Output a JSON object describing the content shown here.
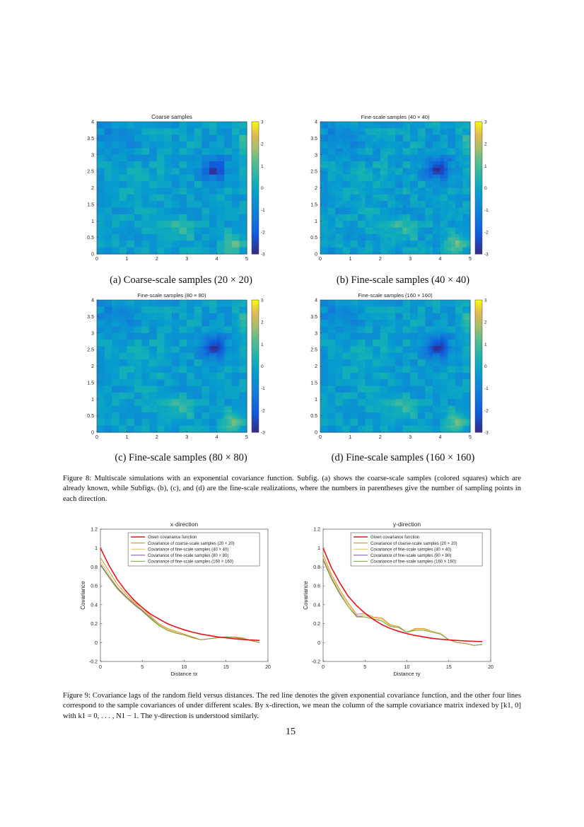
{
  "colors": {
    "red": "#e8141b",
    "orange": "#d9881c",
    "yellow": "#e8c241",
    "purple": "#7e4fa6",
    "green": "#77ac30"
  },
  "colorbar_ticks": [
    "3",
    "2",
    "1",
    "0",
    "-1",
    "-2",
    "-3"
  ],
  "heatmap_xticks": [
    "0",
    "1",
    "2",
    "3",
    "4",
    "5"
  ],
  "heatmap_yticks": [
    "4",
    "3.5",
    "3",
    "2.5",
    "2",
    "1.5",
    "1",
    "0.5",
    "0"
  ],
  "panels": [
    {
      "title": "Coarse samples",
      "caption": "(a) Coarse-scale samples (20 × 20)",
      "grid": 20
    },
    {
      "title": "Fine-scale samples (40 × 40)",
      "caption": "(b) Fine-scale samples (40 × 40)",
      "grid": 40
    },
    {
      "title": "Fine-scale samples (80 × 80)",
      "caption": "(c) Fine-scale samples (80 × 80)",
      "grid": 80
    },
    {
      "title": "Fine-scale samples (160 × 160)",
      "caption": "(d) Fine-scale samples (160 × 160)",
      "grid": 160
    }
  ],
  "figure8_caption": "Figure 8: Multiscale simulations with an exponential covariance function. Subfig. (a) shows the coarse-scale samples (colored squares) which are already known, while Subfigs. (b), (c), and (d) are the fine-scale realizations, where the numbers in parentheses give the number of sampling points in each direction.",
  "figure9_caption": "Figure 9: Covariance lags of the random field versus distances. The red line denotes the given exponential covariance function, and the other four lines correspond to the sample covariances of under different scales. By x-direction, we mean the column of the sample covariance matrix indexed by [k1, 0] with k1 = 0, . . . , N1 − 1. The y-direction is understood similarly.",
  "page_number": "15",
  "chart_data": [
    {
      "type": "line",
      "title": "x-direction",
      "xlabel": "Distance τx",
      "ylabel": "Covariance",
      "xlim": [
        0,
        20
      ],
      "ylim": [
        -0.2,
        1.2
      ],
      "xticks": [
        "0",
        "5",
        "10",
        "15",
        "20"
      ],
      "yticks": [
        "1.2",
        "1",
        "0.8",
        "0.6",
        "0.4",
        "0.2",
        "0",
        "-0.2"
      ],
      "legend_position": "top-right",
      "x": [
        0,
        1,
        2,
        3,
        4,
        5,
        6,
        7,
        8,
        9,
        10,
        11,
        12,
        13,
        14,
        15,
        16,
        17,
        18,
        19
      ],
      "series": [
        {
          "name": "Given covariance function",
          "color": "#e8141b",
          "values": [
            1.0,
            0.82,
            0.67,
            0.55,
            0.45,
            0.37,
            0.3,
            0.25,
            0.2,
            0.165,
            0.135,
            0.11,
            0.09,
            0.075,
            0.06,
            0.05,
            0.04,
            0.033,
            0.027,
            0.022
          ]
        },
        {
          "name": "Covariance of coarse-scale samples (20 × 20)",
          "color": "#d9881c",
          "values": [
            0.9,
            0.76,
            0.62,
            0.52,
            0.43,
            0.37,
            0.28,
            0.2,
            0.15,
            0.12,
            0.09,
            0.06,
            0.03,
            0.04,
            0.055,
            0.06,
            0.06,
            0.05,
            0.02,
            0.0
          ]
        },
        {
          "name": "Covariance of fine-scale samples (40 × 40)",
          "color": "#e8c241",
          "values": [
            0.86,
            0.72,
            0.59,
            0.5,
            0.42,
            0.35,
            0.27,
            0.19,
            0.14,
            0.11,
            0.08,
            0.05,
            0.03,
            0.04,
            0.05,
            0.06,
            0.055,
            0.045,
            0.02,
            0.0
          ]
        },
        {
          "name": "Covariance of fine-scale samples (80 × 80)",
          "color": "#7e4fa6",
          "values": [
            0.83,
            0.7,
            0.58,
            0.49,
            0.41,
            0.34,
            0.26,
            0.18,
            0.13,
            0.1,
            0.08,
            0.05,
            0.03,
            0.04,
            0.05,
            0.06,
            0.055,
            0.04,
            0.02,
            0.0
          ]
        },
        {
          "name": "Covariance of fine-scale samples (160 × 160)",
          "color": "#77ac30",
          "values": [
            0.82,
            0.69,
            0.57,
            0.48,
            0.4,
            0.33,
            0.25,
            0.18,
            0.13,
            0.1,
            0.08,
            0.05,
            0.03,
            0.04,
            0.05,
            0.06,
            0.055,
            0.04,
            0.02,
            0.0
          ]
        }
      ]
    },
    {
      "type": "line",
      "title": "y-direction",
      "xlabel": "Distance τy",
      "ylabel": "Covariance",
      "xlim": [
        0,
        20
      ],
      "ylim": [
        -0.2,
        1.2
      ],
      "xticks": [
        "0",
        "5",
        "10",
        "15",
        "20"
      ],
      "yticks": [
        "1.2",
        "1",
        "0.8",
        "0.6",
        "0.4",
        "0.2",
        "0",
        "-0.2"
      ],
      "legend_position": "top-right",
      "x": [
        0,
        1,
        2,
        3,
        4,
        5,
        6,
        7,
        8,
        9,
        10,
        11,
        12,
        13,
        14,
        15,
        16,
        17,
        18,
        19
      ],
      "series": [
        {
          "name": "Given covariance function",
          "color": "#e8141b",
          "values": [
            1.0,
            0.79,
            0.63,
            0.49,
            0.39,
            0.31,
            0.245,
            0.19,
            0.15,
            0.12,
            0.095,
            0.075,
            0.06,
            0.045,
            0.035,
            0.028,
            0.022,
            0.017,
            0.013,
            0.01
          ]
        },
        {
          "name": "Covariance of coarse-scale samples (20 × 20)",
          "color": "#d9881c",
          "values": [
            0.93,
            0.72,
            0.56,
            0.42,
            0.3,
            0.31,
            0.27,
            0.26,
            0.19,
            0.17,
            0.11,
            0.15,
            0.15,
            0.12,
            0.1,
            0.03,
            0.0,
            -0.01,
            -0.03,
            -0.02
          ]
        },
        {
          "name": "Covariance of fine-scale samples (40 × 40)",
          "color": "#e8c241",
          "values": [
            0.9,
            0.7,
            0.54,
            0.4,
            0.29,
            0.29,
            0.26,
            0.25,
            0.18,
            0.16,
            0.11,
            0.14,
            0.14,
            0.12,
            0.1,
            0.03,
            0.0,
            -0.01,
            -0.03,
            -0.02
          ]
        },
        {
          "name": "Covariance of fine-scale samples (80 × 80)",
          "color": "#7e4fa6",
          "values": [
            0.88,
            0.68,
            0.52,
            0.38,
            0.28,
            0.27,
            0.25,
            0.23,
            0.17,
            0.16,
            0.11,
            0.13,
            0.13,
            0.11,
            0.09,
            0.03,
            0.0,
            -0.01,
            -0.03,
            -0.02
          ]
        },
        {
          "name": "Covariance of fine-scale samples (160 × 160)",
          "color": "#77ac30",
          "values": [
            0.87,
            0.67,
            0.51,
            0.38,
            0.27,
            0.27,
            0.25,
            0.23,
            0.17,
            0.16,
            0.11,
            0.13,
            0.13,
            0.11,
            0.09,
            0.03,
            0.0,
            -0.01,
            -0.03,
            -0.02
          ]
        }
      ]
    }
  ]
}
